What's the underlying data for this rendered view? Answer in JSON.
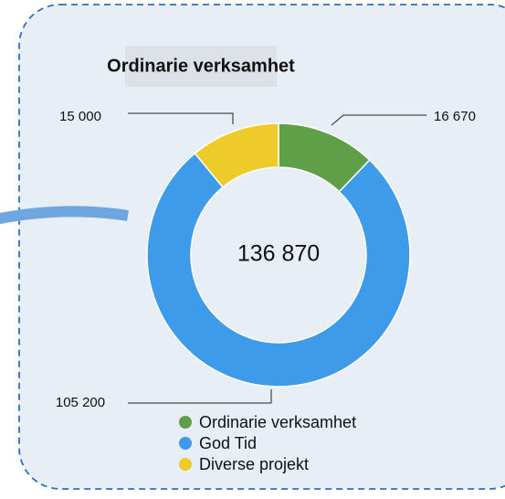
{
  "chart_data": {
    "type": "donut",
    "title": "Ordinarie verksamhet",
    "categories": [
      "Ordinarie verksamhet",
      "God Tid",
      "Diverse projekt"
    ],
    "values": [
      16670,
      105200,
      15000
    ],
    "value_labels": [
      "16 670",
      "105 200",
      "15 000"
    ],
    "colors": [
      "#5e9f48",
      "#3e9bea",
      "#eecb2a"
    ],
    "center_text": "136 870"
  }
}
